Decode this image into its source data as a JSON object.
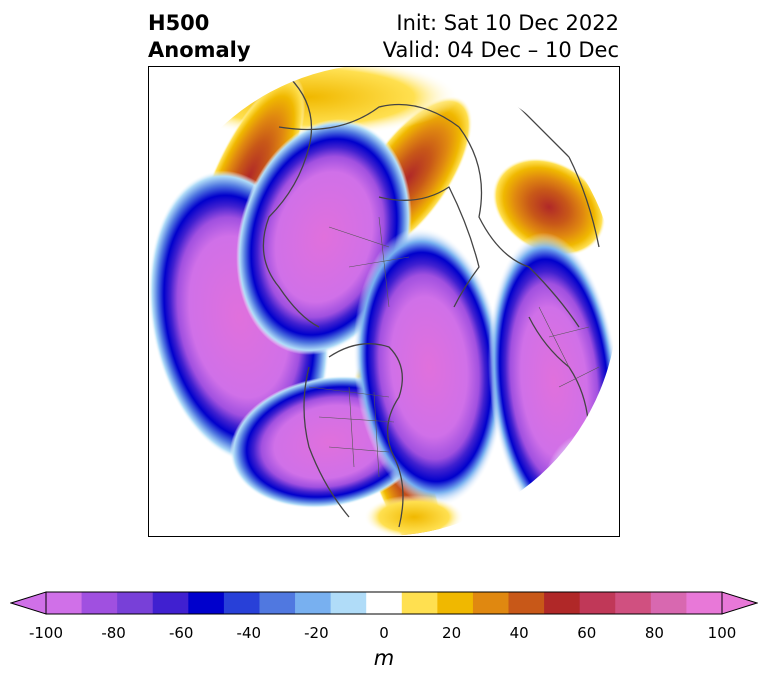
{
  "title": {
    "left_line1": "H500",
    "left_line2": "Anomaly",
    "right_line1": "Init: Sat 10 Dec 2022",
    "right_line2": "Valid: 04 Dec – 10 Dec"
  },
  "colorbar": {
    "unit": "m",
    "ticks": [
      "-100",
      "-80",
      "-60",
      "-40",
      "-20",
      "0",
      "20",
      "40",
      "60",
      "80",
      "100"
    ],
    "levels": [
      -100,
      -90,
      -80,
      -70,
      -60,
      -50,
      -40,
      -30,
      -20,
      -10,
      10,
      20,
      30,
      40,
      50,
      60,
      70,
      80,
      90,
      100
    ],
    "colors": [
      "#d070e8",
      "#a050e0",
      "#7840d8",
      "#4020d0",
      "#0000cc",
      "#2840d8",
      "#5078e0",
      "#78b0f0",
      "#b0dcf8",
      "#ffffff",
      "#ffe050",
      "#f0b800",
      "#e08810",
      "#c85818",
      "#b02828",
      "#c03858",
      "#d05080",
      "#d868b0",
      "#e878d8"
    ],
    "extend": "both"
  },
  "map": {
    "projection": "north-polar-stereographic",
    "anomalies": [
      {
        "region": "North Pacific",
        "sign": "negative",
        "peak_m": -100
      },
      {
        "region": "Northeast Asia / Siberia",
        "sign": "negative",
        "peak_m": -100
      },
      {
        "region": "Western United States",
        "sign": "negative",
        "peak_m": -100
      },
      {
        "region": "North Atlantic / Greenland",
        "sign": "negative",
        "peak_m": -100
      },
      {
        "region": "Europe",
        "sign": "negative",
        "peak_m": -90
      },
      {
        "region": "Alaska / Bering Sea",
        "sign": "positive",
        "peak_m": 60
      },
      {
        "region": "Arctic Ocean",
        "sign": "positive",
        "peak_m": 40
      },
      {
        "region": "Western Russia",
        "sign": "positive",
        "peak_m": 60
      }
    ]
  }
}
